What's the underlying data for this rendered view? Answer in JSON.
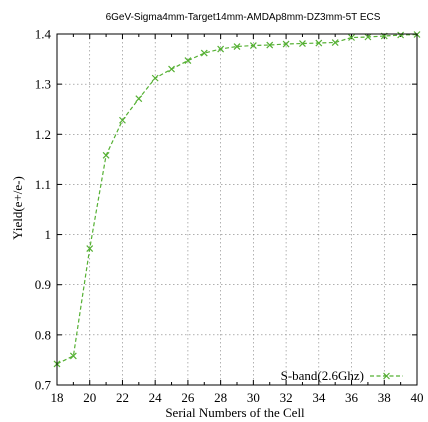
{
  "chart_data": {
    "type": "line",
    "title": "6GeV-Sigma4mm-Target14mm-AMDAp8mm-DZ3mm-5T ECS",
    "xlabel": "Serial Numbers of the Cell",
    "ylabel": "Yield(e+/e-)",
    "xlim": [
      18,
      40
    ],
    "ylim": [
      0.7,
      1.4
    ],
    "x_ticks": [
      "18",
      "20",
      "22",
      "24",
      "26",
      "28",
      "30",
      "32",
      "34",
      "36",
      "38",
      "40"
    ],
    "y_ticks": [
      "0.7",
      "0.8",
      "0.9",
      "1",
      "1.1",
      "1.2",
      "1.3",
      "1.4"
    ],
    "grid": true,
    "legend_position": "bottom-right",
    "series": [
      {
        "name": "S-band(2.6Ghz)",
        "color": "#55b033",
        "marker": "x",
        "line_style": "dashed",
        "x": [
          18,
          19,
          20,
          21,
          22,
          23,
          24,
          25,
          26,
          27,
          28,
          29,
          30,
          31,
          32,
          33,
          34,
          35,
          36,
          37,
          38,
          39,
          40
        ],
        "y": [
          0.742,
          0.758,
          0.972,
          1.158,
          1.228,
          1.271,
          1.312,
          1.33,
          1.347,
          1.362,
          1.37,
          1.375,
          1.377,
          1.378,
          1.38,
          1.381,
          1.382,
          1.383,
          1.393,
          1.394,
          1.396,
          1.398,
          1.399
        ]
      }
    ]
  }
}
